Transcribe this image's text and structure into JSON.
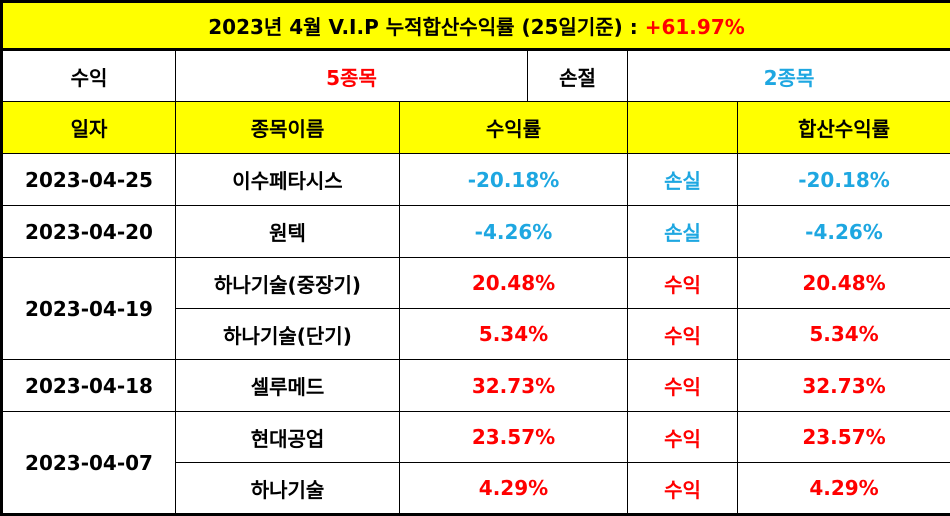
{
  "title": {
    "text": "2023년 4월 V.I.P 누적합산수익률 (25일기준) :",
    "total": "+61.97%"
  },
  "summary": {
    "profit_label": "수익",
    "profit_value": "5종목",
    "loss_label": "손절",
    "loss_value": "2종목"
  },
  "headers": {
    "date": "일자",
    "name": "종목이름",
    "rate": "수익률",
    "status": "",
    "cumulative": "합산수익률"
  },
  "rows": [
    {
      "date": "2023-04-25",
      "name": "이수페타시스",
      "rate": "-20.18%",
      "status": "손실",
      "cumulative": "-20.18%"
    },
    {
      "date": "2023-04-20",
      "name": "원텍",
      "rate": "-4.26%",
      "status": "손실",
      "cumulative": "-4.26%"
    },
    {
      "date": "2023-04-19",
      "name": "하나기술(중장기)",
      "rate": "20.48%",
      "status": "수익",
      "cumulative": "20.48%"
    },
    {
      "date": "",
      "name": "하나기술(단기)",
      "rate": "5.34%",
      "status": "수익",
      "cumulative": "5.34%"
    },
    {
      "date": "2023-04-18",
      "name": "셀루메드",
      "rate": "32.73%",
      "status": "수익",
      "cumulative": "32.73%"
    },
    {
      "date": "2023-04-07",
      "name": "현대공업",
      "rate": "23.57%",
      "status": "수익",
      "cumulative": "23.57%"
    },
    {
      "date": "",
      "name": "하나기술",
      "rate": "4.29%",
      "status": "수익",
      "cumulative": "4.29%"
    }
  ],
  "colors": {
    "header_bg": "#ffff00",
    "profit": "#ff0000",
    "loss": "#1ea7e1"
  }
}
